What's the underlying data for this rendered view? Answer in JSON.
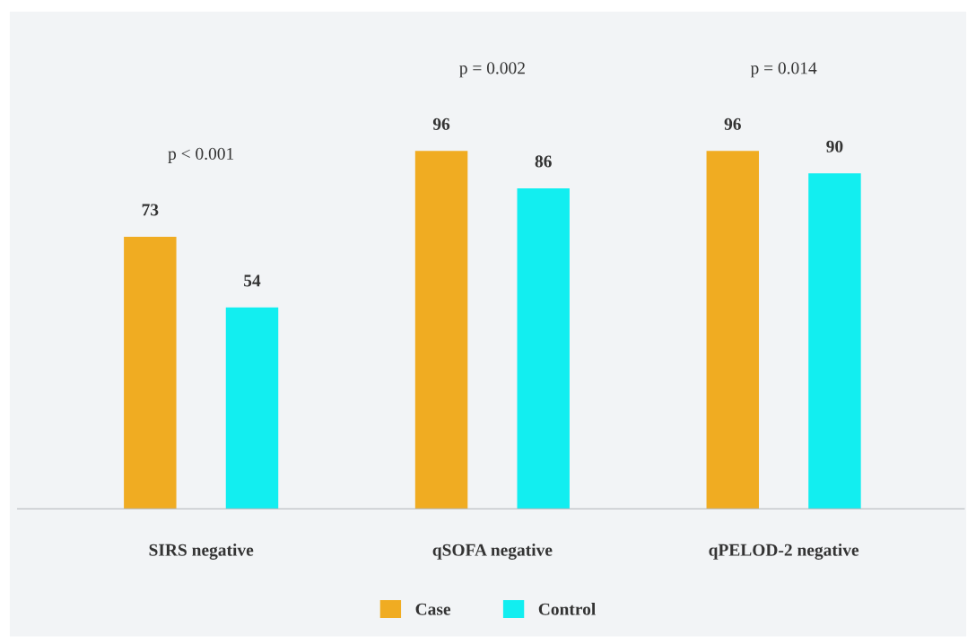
{
  "chart_data": {
    "type": "bar",
    "categories": [
      "SIRS negative",
      "qSOFA negative",
      "qPELOD-2 negative"
    ],
    "series": [
      {
        "name": "Case",
        "color": "#f0ac22",
        "values": [
          73,
          96,
          96
        ]
      },
      {
        "name": "Control",
        "color": "#12eef0",
        "values": [
          54,
          86,
          90
        ]
      }
    ],
    "data_labels": true,
    "annotations": [
      "p < 0.001",
      "p = 0.002",
      "p = 0.014"
    ],
    "legend": "bottom",
    "grid": false
  }
}
